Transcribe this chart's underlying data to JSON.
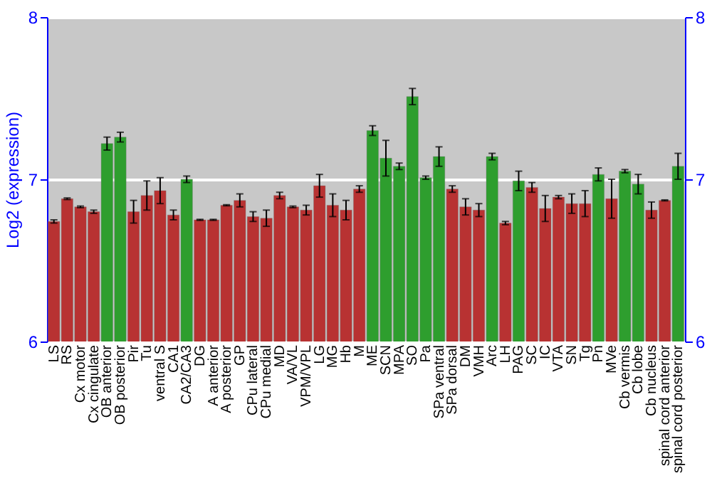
{
  "chart_data": {
    "type": "bar",
    "ylabel": "Log2 (expression)",
    "categories": [
      "LS",
      "RS",
      "Cx motor",
      "Cx cingulate",
      "OB anterior",
      "OB posterior",
      "Pir",
      "Tu",
      "ventral S",
      "CA1",
      "CA2/CA3",
      "DG",
      "A anterior",
      "A posterior",
      "GP",
      "CPu lateral",
      "CPu medial",
      "MD",
      "VA/VL",
      "VPM/VPL",
      "LG",
      "MG",
      "Hb",
      "M",
      "ME",
      "SCN",
      "MPA",
      "SO",
      "Pa",
      "SPa ventral",
      "SPa dorsal",
      "DM",
      "VMH",
      "Arc",
      "LH",
      "PAG",
      "SC",
      "IC",
      "VTA",
      "SN",
      "Tg",
      "Pn",
      "MVe",
      "Cb vermis",
      "Cb lobe",
      "Cb nucleus",
      "spinal cord anterior",
      "spinal cord posterior"
    ],
    "values": [
      6.74,
      6.88,
      6.83,
      6.8,
      7.22,
      7.26,
      6.8,
      6.9,
      6.93,
      6.78,
      7.0,
      6.75,
      6.75,
      6.84,
      6.87,
      6.77,
      6.76,
      6.9,
      6.83,
      6.81,
      6.96,
      6.84,
      6.81,
      6.94,
      7.3,
      7.13,
      7.08,
      7.51,
      7.01,
      7.14,
      6.94,
      6.83,
      6.81,
      7.14,
      6.73,
      6.99,
      6.95,
      6.82,
      6.89,
      6.85,
      6.85,
      7.03,
      6.88,
      7.05,
      6.97,
      6.81,
      6.87,
      7.08
    ],
    "errors": [
      0.01,
      0.005,
      0.005,
      0.01,
      0.04,
      0.03,
      0.07,
      0.09,
      0.08,
      0.03,
      0.02,
      0.003,
      0.003,
      0.003,
      0.04,
      0.03,
      0.05,
      0.02,
      0.005,
      0.03,
      0.07,
      0.07,
      0.06,
      0.02,
      0.03,
      0.11,
      0.02,
      0.05,
      0.01,
      0.06,
      0.02,
      0.05,
      0.04,
      0.02,
      0.01,
      0.06,
      0.03,
      0.08,
      0.01,
      0.06,
      0.08,
      0.04,
      0.12,
      0.01,
      0.06,
      0.05,
      0.003,
      0.08
    ],
    "colors": [
      "#b83232",
      "#b83232",
      "#b83232",
      "#b83232",
      "#2e9e2e",
      "#2e9e2e",
      "#b83232",
      "#b83232",
      "#b83232",
      "#b83232",
      "#2e9e2e",
      "#b83232",
      "#b83232",
      "#b83232",
      "#b83232",
      "#b83232",
      "#b83232",
      "#b83232",
      "#b83232",
      "#b83232",
      "#b83232",
      "#b83232",
      "#b83232",
      "#b83232",
      "#2e9e2e",
      "#2e9e2e",
      "#2e9e2e",
      "#2e9e2e",
      "#2e9e2e",
      "#2e9e2e",
      "#b83232",
      "#b83232",
      "#b83232",
      "#2e9e2e",
      "#b83232",
      "#2e9e2e",
      "#b83232",
      "#b83232",
      "#b83232",
      "#b83232",
      "#b83232",
      "#2e9e2e",
      "#b83232",
      "#2e9e2e",
      "#2e9e2e",
      "#b83232",
      "#b83232",
      "#2e9e2e"
    ],
    "ylim": [
      6,
      8
    ],
    "yticks": [
      6,
      7,
      8
    ],
    "y2lim": [
      6,
      8
    ],
    "y2ticks": [
      6,
      7,
      8
    ],
    "grid": "y"
  }
}
